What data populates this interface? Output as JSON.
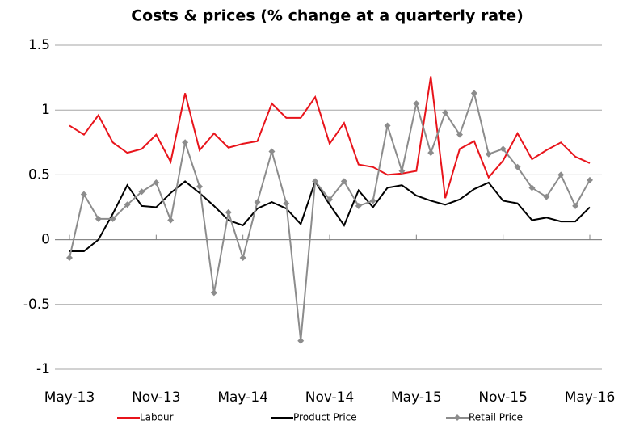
{
  "chart_data": {
    "type": "line",
    "title": "Costs & prices (% change at a quarterly rate)",
    "categories": [
      "May-13",
      null,
      null,
      null,
      null,
      null,
      "Nov-13",
      null,
      null,
      null,
      null,
      null,
      "May-14",
      null,
      null,
      null,
      null,
      null,
      "Nov-14",
      null,
      null,
      null,
      null,
      null,
      "May-15",
      null,
      null,
      null,
      null,
      null,
      "Nov-15",
      null,
      null,
      null,
      null,
      null,
      "May-16"
    ],
    "series": [
      {
        "name": "Labour",
        "color": "#e8141b",
        "values": [
          0.88,
          0.81,
          0.96,
          0.75,
          0.67,
          0.7,
          0.81,
          0.6,
          1.13,
          0.69,
          0.82,
          0.71,
          0.74,
          0.76,
          1.05,
          0.94,
          0.94,
          1.1,
          0.74,
          0.9,
          0.58,
          0.56,
          0.5,
          0.51,
          0.53,
          1.26,
          0.32,
          0.7,
          0.76,
          0.48,
          0.61,
          0.82,
          0.62,
          0.69,
          0.75,
          0.64,
          0.59
        ]
      },
      {
        "name": "Product Price",
        "color": "#000000",
        "values": [
          -0.09,
          -0.09,
          0.0,
          0.2,
          0.42,
          0.26,
          0.25,
          0.36,
          0.45,
          0.36,
          0.26,
          0.15,
          0.11,
          0.24,
          0.29,
          0.24,
          0.12,
          0.45,
          0.27,
          0.11,
          0.38,
          0.25,
          0.4,
          0.42,
          0.34,
          0.3,
          0.27,
          0.31,
          0.39,
          0.44,
          0.3,
          0.28,
          0.15,
          0.17,
          0.14,
          0.14,
          0.25
        ]
      },
      {
        "name": "Retail Price",
        "color": "#8c8c8c",
        "marker": "diamond",
        "values": [
          -0.14,
          0.35,
          0.16,
          0.16,
          0.27,
          0.37,
          0.44,
          0.15,
          0.75,
          0.41,
          -0.41,
          0.21,
          -0.14,
          0.29,
          0.68,
          0.28,
          -0.78,
          0.45,
          0.31,
          0.45,
          0.26,
          0.3,
          0.88,
          0.53,
          1.05,
          0.67,
          0.98,
          0.81,
          1.13,
          0.66,
          0.7,
          0.56,
          0.4,
          0.33,
          0.5,
          0.26,
          0.46
        ]
      }
    ],
    "ylim": [
      -1,
      1.5
    ],
    "yticks": [
      1.5,
      1,
      0.5,
      0,
      -0.5,
      -1
    ],
    "grid": true,
    "legend": "bottom"
  }
}
